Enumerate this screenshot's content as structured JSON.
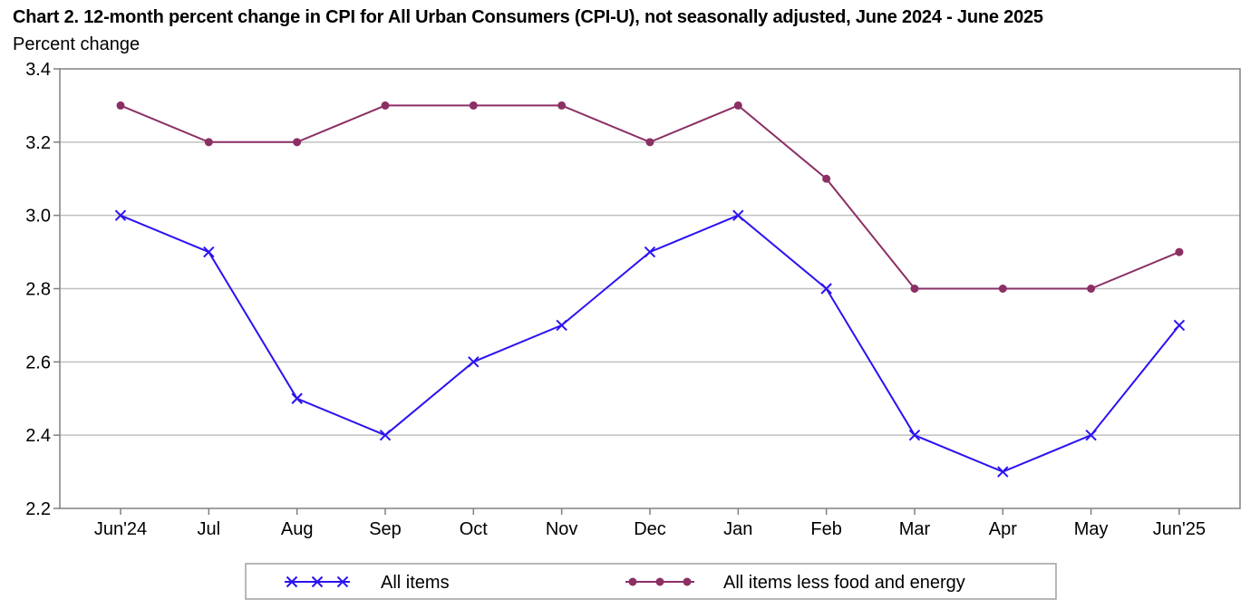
{
  "chart_data": {
    "type": "line",
    "title": "Chart 2. 12-month percent change in CPI for All Urban Consumers (CPI-U), not seasonally adjusted, June 2024 - June 2025",
    "ylabel": "Percent change",
    "xlabel": "",
    "categories": [
      "Jun'24",
      "Jul",
      "Aug",
      "Sep",
      "Oct",
      "Nov",
      "Dec",
      "Jan",
      "Feb",
      "Mar",
      "Apr",
      "May",
      "Jun'25"
    ],
    "ylim": [
      2.2,
      3.4
    ],
    "yticks": [
      "2.2",
      "2.4",
      "2.6",
      "2.8",
      "3.0",
      "3.2",
      "3.4"
    ],
    "grid": "horizontal",
    "legend_position": "bottom",
    "series": [
      {
        "name": "All items",
        "marker": "x",
        "color": "#2b12f2",
        "values": [
          3.0,
          2.9,
          2.5,
          2.4,
          2.6,
          2.7,
          2.9,
          3.0,
          2.8,
          2.4,
          2.3,
          2.4,
          2.7
        ]
      },
      {
        "name": "All items less food and energy",
        "marker": "circle",
        "color": "#8b2f64",
        "values": [
          3.3,
          3.2,
          3.2,
          3.3,
          3.3,
          3.3,
          3.2,
          3.3,
          3.1,
          2.8,
          2.8,
          2.8,
          2.9
        ]
      }
    ]
  }
}
